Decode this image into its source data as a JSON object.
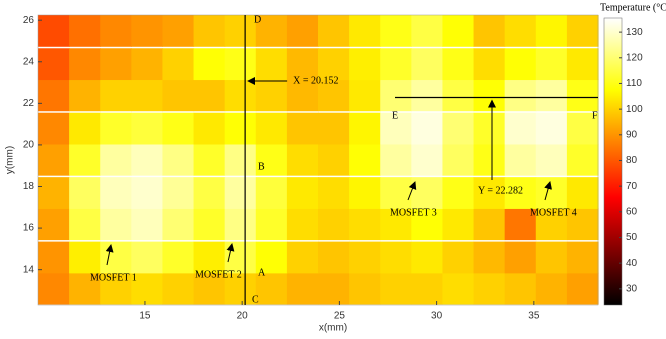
{
  "chart_data": {
    "type": "heatmap",
    "colormap": "hot",
    "xlabel": "x(mm)",
    "ylabel": "y(mm)",
    "colorbar_label": "Temperature (°C)",
    "xlim": [
      9.5,
      38.3
    ],
    "ylim": [
      12.3,
      26.25
    ],
    "clim": [
      23.7,
      135.5
    ],
    "xticks": [
      15,
      20,
      25,
      30,
      35
    ],
    "yticks": [
      14,
      16,
      18,
      20,
      22,
      24,
      26
    ],
    "cticks": [
      30,
      40,
      50,
      60,
      70,
      80,
      90,
      100,
      110,
      120,
      130
    ],
    "x": [
      10.3,
      11.9,
      13.5,
      15.1,
      16.7,
      18.3,
      19.9,
      21.5,
      23.1,
      24.7,
      26.3,
      27.9,
      29.5,
      31.1,
      32.7,
      34.3,
      35.9,
      37.5
    ],
    "y": [
      13.1,
      14.6,
      16.2,
      17.7,
      19.3,
      20.8,
      22.4,
      23.9,
      25.5
    ],
    "z": [
      [
        88,
        95,
        100,
        102,
        100,
        98,
        100,
        98,
        95,
        95,
        98,
        100,
        100,
        102,
        100,
        98,
        95,
        92
      ],
      [
        90,
        105,
        115,
        118,
        112,
        105,
        115,
        108,
        100,
        98,
        100,
        102,
        104,
        100,
        96,
        92,
        98,
        95
      ],
      [
        92,
        115,
        125,
        128,
        120,
        112,
        122,
        112,
        102,
        100,
        102,
        104,
        108,
        104,
        98,
        85,
        100,
        98
      ],
      [
        95,
        118,
        128,
        130,
        124,
        115,
        125,
        114,
        104,
        102,
        106,
        115,
        118,
        110,
        104,
        110,
        112,
        104
      ],
      [
        92,
        112,
        125,
        128,
        122,
        112,
        122,
        110,
        102,
        100,
        108,
        125,
        130,
        118,
        110,
        125,
        128,
        112
      ],
      [
        88,
        104,
        112,
        114,
        110,
        104,
        108,
        104,
        98,
        98,
        106,
        128,
        132,
        120,
        112,
        130,
        132,
        115
      ],
      [
        85,
        95,
        100,
        100,
        98,
        98,
        102,
        100,
        96,
        98,
        104,
        120,
        125,
        115,
        108,
        122,
        125,
        110
      ],
      [
        80,
        88,
        92,
        95,
        100,
        108,
        110,
        102,
        96,
        100,
        105,
        112,
        118,
        110,
        102,
        108,
        112,
        104
      ],
      [
        78,
        84,
        88,
        90,
        92,
        98,
        100,
        95,
        92,
        98,
        104,
        110,
        115,
        108,
        98,
        102,
        106,
        100
      ]
    ],
    "vlines": [
      {
        "value": 20.152,
        "label": "X = 20.152"
      }
    ],
    "hlines": [
      {
        "value": 22.282,
        "label": "Y = 22.282"
      }
    ],
    "annotations": [
      "MOSFET 1",
      "MOSFET 2",
      "MOSFET 3",
      "MOSFET 4"
    ],
    "points": [
      "A",
      "B",
      "C",
      "D",
      "E",
      "F"
    ]
  }
}
